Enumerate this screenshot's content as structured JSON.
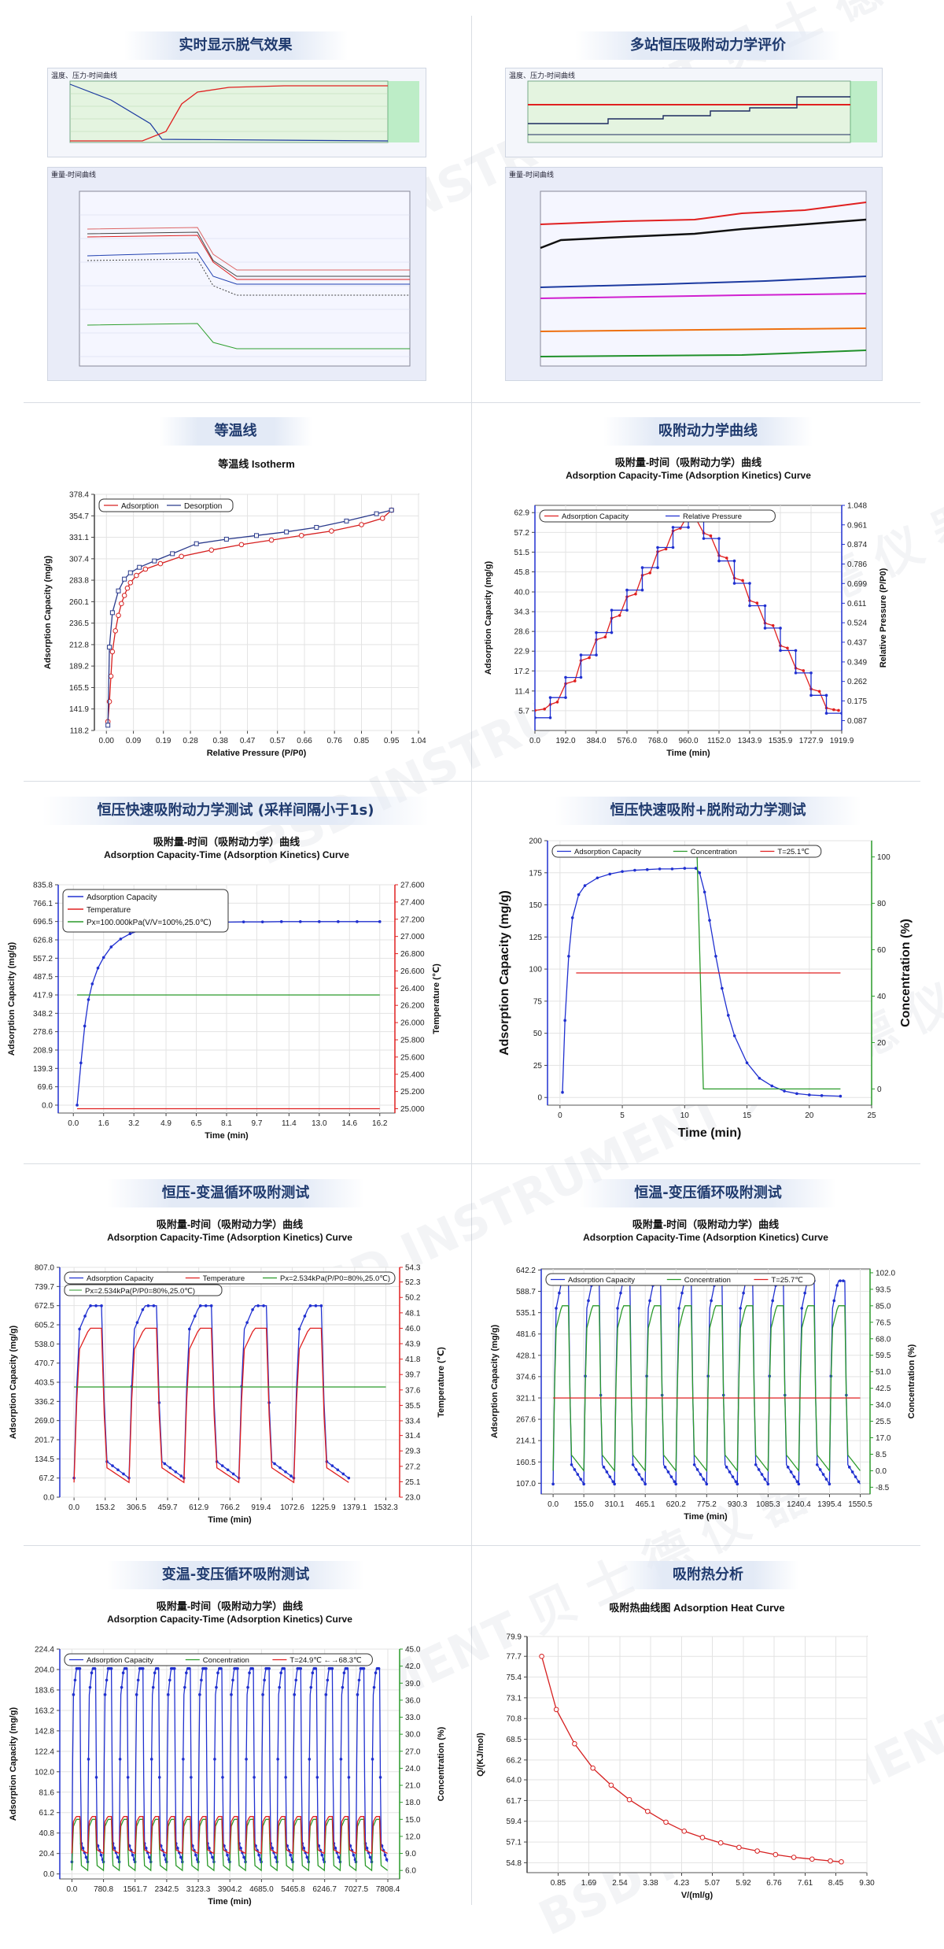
{
  "sections": {
    "s1": "实时显示脱气效果",
    "s2": "多站恒压吸附动力学评价",
    "s3": "等温线",
    "s4": "吸附动力学曲线",
    "s5": "恒压快速吸附动力学测试 (采样间隔小于1s)",
    "s6": "恒压快速吸附+脱附动力学测试",
    "s7": "恒压-变温循环吸附测试",
    "s8": "恒温-变压循环吸附测试",
    "s9": "变温-变压循环吸附测试",
    "s10": "吸附热分析"
  },
  "watermark": "BSD INSTRUMENT 贝 士 德 仪 器",
  "screens": {
    "degas_top_caption": "温度、压力-时间曲线",
    "degas_bottom_caption": "重量-时间曲线",
    "multi_top_caption": "温度、压力-时间曲线",
    "multi_bottom_caption": "重量-时间曲线"
  },
  "chart_data": [
    {
      "id": "isotherm",
      "type": "line",
      "title": "等温线 Isotherm",
      "xlabel": "Relative Pressure (P/P0)",
      "ylabel": "Adsorption Capacity (mg/g)",
      "xlim": [
        -0.04,
        1.04
      ],
      "ylim": [
        118.2,
        378.4
      ],
      "xticks": [
        "0.00",
        "0.09",
        "0.19",
        "0.28",
        "0.38",
        "0.47",
        "0.57",
        "0.66",
        "0.76",
        "0.85",
        "0.95",
        "1.04"
      ],
      "yticks": [
        "118.2",
        "141.9",
        "165.5",
        "189.2",
        "212.8",
        "236.5",
        "260.1",
        "283.8",
        "307.4",
        "331.1",
        "354.7",
        "378.4"
      ],
      "grid": true,
      "legend": "top-left",
      "series": [
        {
          "name": "Adsorption",
          "color": "#d62020",
          "x": [
            0.005,
            0.01,
            0.015,
            0.02,
            0.03,
            0.04,
            0.05,
            0.06,
            0.07,
            0.08,
            0.1,
            0.13,
            0.18,
            0.25,
            0.35,
            0.45,
            0.55,
            0.65,
            0.75,
            0.85,
            0.92,
            0.95
          ],
          "y": [
            128,
            150,
            178,
            205,
            228,
            245,
            258,
            267,
            275,
            281,
            289,
            296,
            302,
            310,
            317,
            323,
            328,
            333,
            338,
            345,
            352,
            361
          ]
        },
        {
          "name": "Desorption",
          "color": "#2a3a8c",
          "x": [
            0.95,
            0.9,
            0.8,
            0.7,
            0.6,
            0.5,
            0.4,
            0.3,
            0.22,
            0.16,
            0.11,
            0.08,
            0.06,
            0.04,
            0.02,
            0.01,
            0.005
          ],
          "y": [
            361,
            357,
            349,
            342,
            337,
            333,
            329,
            324,
            313,
            305,
            298,
            292,
            285,
            272,
            248,
            210,
            124
          ]
        }
      ]
    },
    {
      "id": "kinetics",
      "type": "line",
      "title": "吸附量-时间（吸附动力学）曲线",
      "subtitle": "Adsorption Capacity-Time (Adsorption Kinetics) Curve",
      "xlabel": "Time (min)",
      "ylabel": "Adsorption Capacity (mg/g)",
      "y2label": "Relative Pressure (P/P0)",
      "xlim": [
        0,
        1919.9
      ],
      "ylim": [
        0,
        65
      ],
      "y2lim": [
        0.043,
        1.048
      ],
      "xticks": [
        "0.0",
        "192.0",
        "384.0",
        "576.0",
        "768.0",
        "960.0",
        "1152.0",
        "1343.9",
        "1535.9",
        "1727.9",
        "1919.9"
      ],
      "yticks": [
        "5.7",
        "11.4",
        "17.2",
        "22.9",
        "28.6",
        "34.3",
        "40.0",
        "45.8",
        "51.5",
        "57.2",
        "62.9"
      ],
      "y2ticks": [
        "0.087",
        "0.175",
        "0.262",
        "0.349",
        "0.437",
        "0.524",
        "0.611",
        "0.699",
        "0.786",
        "0.874",
        "0.961",
        "1.048"
      ],
      "grid": true,
      "legend": "top-left",
      "series": [
        {
          "name": "Adsorption  Capacity",
          "color": "#e02020",
          "x": [
            0,
            60,
            96,
            140,
            192,
            250,
            288,
            340,
            384,
            440,
            480,
            530,
            576,
            630,
            672,
            720,
            768,
            820,
            864,
            910,
            960,
            1000,
            1056,
            1100,
            1152,
            1200,
            1248,
            1300,
            1344,
            1390,
            1440,
            1490,
            1536,
            1580,
            1632,
            1680,
            1728,
            1780,
            1824,
            1870,
            1900
          ],
          "y": [
            5.8,
            6.2,
            7.5,
            8.2,
            13.5,
            14.3,
            20.2,
            21.0,
            26.2,
            27.0,
            32.4,
            33.2,
            38.6,
            39.4,
            44.8,
            45.5,
            51.6,
            52.4,
            57.6,
            58.4,
            62.5,
            61.8,
            57.0,
            56.2,
            50.5,
            49.8,
            44.0,
            43.3,
            37.5,
            36.8,
            31.0,
            30.3,
            24.5,
            23.8,
            18.0,
            17.3,
            12.0,
            11.3,
            6.5,
            6.0,
            5.8
          ]
        },
        {
          "name": "Relative Pressure",
          "color": "#2030d0",
          "x": [
            0,
            96,
            96,
            192,
            192,
            288,
            288,
            384,
            384,
            480,
            480,
            576,
            576,
            672,
            672,
            768,
            768,
            864,
            864,
            960,
            960,
            1056,
            1056,
            1152,
            1152,
            1248,
            1248,
            1344,
            1344,
            1440,
            1440,
            1536,
            1536,
            1632,
            1632,
            1728,
            1728,
            1824,
            1824,
            1919.9
          ],
          "y2": [
            0.1,
            0.1,
            0.19,
            0.19,
            0.28,
            0.28,
            0.38,
            0.38,
            0.48,
            0.48,
            0.58,
            0.58,
            0.67,
            0.67,
            0.77,
            0.77,
            0.86,
            0.86,
            0.95,
            0.95,
            0.99,
            0.99,
            0.9,
            0.9,
            0.8,
            0.8,
            0.7,
            0.7,
            0.6,
            0.6,
            0.5,
            0.5,
            0.4,
            0.4,
            0.3,
            0.3,
            0.2,
            0.2,
            0.12,
            0.12
          ]
        }
      ]
    },
    {
      "id": "fast_kinetics",
      "type": "line",
      "title": "吸附量-时间（吸附动力学）曲线",
      "subtitle": "Adsorption Capacity-Time (Adsorption Kinetics) Curve",
      "xlabel": "Time (min)",
      "ylabel": "Adsorption Capacity (mg/g)",
      "y2label": "Temperature (℃)",
      "xlim": [
        -0.8,
        17.0
      ],
      "ylim": [
        -30,
        835.8
      ],
      "y2lim": [
        24.95,
        27.6
      ],
      "xticks": [
        "0.0",
        "1.6",
        "3.2",
        "4.9",
        "6.5",
        "8.1",
        "9.7",
        "11.4",
        "13.0",
        "14.6",
        "16.2"
      ],
      "yticks": [
        "0.0",
        "69.6",
        "139.3",
        "208.9",
        "278.6",
        "348.2",
        "417.9",
        "487.5",
        "557.2",
        "626.8",
        "696.5",
        "766.1",
        "835.8"
      ],
      "y2ticks": [
        "25.000",
        "25.200",
        "25.400",
        "25.600",
        "25.800",
        "26.000",
        "26.200",
        "26.400",
        "26.600",
        "26.800",
        "27.000",
        "27.200",
        "27.400",
        "27.600"
      ],
      "annotation": "Px=100.000kPa(V/V=100%,25.0℃)",
      "grid": true,
      "legend": "top-left",
      "series": [
        {
          "name": "Adsorption Capacity",
          "color": "#2030d0",
          "x": [
            0.2,
            0.4,
            0.6,
            0.8,
            1.0,
            1.3,
            1.6,
            2.0,
            2.5,
            3.0,
            3.6,
            4.2,
            5.0,
            6.0,
            7.0,
            8.0,
            9.0,
            10.0,
            11.0,
            12.0,
            13.0,
            14.0,
            15.0,
            16.2
          ],
          "y": [
            0,
            160,
            300,
            400,
            460,
            520,
            560,
            600,
            630,
            650,
            665,
            676,
            684,
            690,
            693,
            694,
            695,
            695,
            696,
            696,
            696,
            696,
            696,
            696
          ]
        },
        {
          "name": "Temperature",
          "color": "#e02020",
          "x": [
            0.2,
            16.2
          ],
          "y2": [
            25.0,
            25.0
          ]
        },
        {
          "name": "Px=100.000kPa(V/V=100%,25.0℃)",
          "color": "#2a9a2a",
          "x": [
            0.2,
            16.2
          ],
          "y": [
            417.9,
            417.9
          ]
        }
      ]
    },
    {
      "id": "ads_des",
      "type": "line",
      "xlabel": "Time (min)",
      "ylabel": "Adsorption Capacity (mg/g)",
      "y2label": "Concentration (%)",
      "xlim": [
        -1,
        25
      ],
      "ylim": [
        -6,
        200
      ],
      "y2lim": [
        -7,
        107
      ],
      "xticks": [
        "0",
        "5",
        "10",
        "15",
        "20",
        "25"
      ],
      "yticks": [
        "0",
        "25",
        "50",
        "75",
        "100",
        "125",
        "150",
        "175",
        "200"
      ],
      "y2ticks": [
        "0",
        "20",
        "40",
        "60",
        "80",
        "100"
      ],
      "grid": true,
      "legend": "top-left",
      "series": [
        {
          "name": "Adsorption Capacity",
          "color": "#2030d0",
          "x": [
            0.2,
            0.4,
            0.7,
            1.0,
            1.5,
            2.0,
            3.0,
            4.0,
            5.0,
            6.0,
            7.0,
            8.0,
            9.0,
            10.0,
            10.9,
            11.2,
            11.6,
            12.0,
            12.5,
            13.0,
            13.5,
            14.0,
            15.0,
            16.0,
            17.0,
            18.0,
            19.0,
            20.0,
            21.0,
            22.5
          ],
          "y": [
            4,
            60,
            110,
            140,
            158,
            165,
            171,
            174,
            176,
            177,
            177.5,
            178,
            178,
            178.5,
            178.5,
            175,
            160,
            138,
            110,
            85,
            64,
            48,
            27,
            15,
            9,
            5,
            3,
            2,
            1.5,
            1
          ]
        },
        {
          "name": "Concentration",
          "color": "#2a9a2a",
          "x": [
            0.2,
            11.0,
            11.0,
            11.5,
            22.5
          ],
          "y2": [
            100,
            100,
            100,
            0,
            0
          ]
        },
        {
          "name": "T=25.1℃",
          "color": "#e02020",
          "x": [
            1.3,
            22.5
          ],
          "y": [
            97,
            97
          ]
        }
      ]
    },
    {
      "id": "temp_cycle",
      "type": "line",
      "title": "吸附量-时间（吸附动力学）曲线",
      "subtitle": "Adsorption Capacity-Time (Adsorption Kinetics) Curve",
      "xlabel": "Time (min)",
      "ylabel": "Adsorption Capacity (mg/g)",
      "y2label": "Temperature (℃)",
      "xlim": [
        -70,
        1600
      ],
      "ylim": [
        0,
        807.0
      ],
      "y2lim": [
        23.0,
        54.3
      ],
      "xticks": [
        "0.0",
        "153.2",
        "306.5",
        "459.7",
        "612.9",
        "766.2",
        "919.4",
        "1072.6",
        "1225.9",
        "1379.1",
        "1532.3"
      ],
      "yticks": [
        "0.0",
        "67.2",
        "134.5",
        "201.7",
        "269.0",
        "336.2",
        "403.5",
        "470.7",
        "538.0",
        "605.2",
        "672.5",
        "739.7",
        "807.0"
      ],
      "y2ticks": [
        "23.0",
        "25.1",
        "27.2",
        "29.3",
        "31.4",
        "33.4",
        "35.5",
        "37.6",
        "39.7",
        "41.8",
        "43.9",
        "46.0",
        "48.1",
        "50.2",
        "52.3",
        "54.3"
      ],
      "annotation": "Px=2.534kPa(P/P0=80%,25.0℃)",
      "grid": true,
      "legend": "top",
      "series": [
        {
          "name": "Adsorption Capacity",
          "color": "#2030d0",
          "cycles": 5,
          "period": 270,
          "high": 672,
          "low": 67.2
        },
        {
          "name": "Temperature",
          "color": "#e02020",
          "cycles": 5,
          "period": 270,
          "high": 46.0,
          "low": 25.0
        },
        {
          "name": "Px=2.534kPa(P/P0=80%,25.0℃)",
          "color": "#2a9a2a",
          "x": [
            0,
            1532.3
          ],
          "y": [
            387,
            387
          ]
        }
      ]
    },
    {
      "id": "pressure_cycle",
      "type": "line",
      "title": "吸附量-时间（吸附动力学）曲线",
      "subtitle": "Adsorption Capacity-Time (Adsorption Kinetics) Curve",
      "xlabel": "Time (min)",
      "ylabel": "Adsorption Capacity (mg/g)",
      "y2label": "Concentration (%)",
      "xlim": [
        -60,
        1600
      ],
      "ylim": [
        80,
        645
      ],
      "y2lim": [
        -12,
        104
      ],
      "xticks": [
        "0.0",
        "155.0",
        "310.1",
        "465.1",
        "620.2",
        "775.2",
        "930.3",
        "1085.3",
        "1240.4",
        "1395.4",
        "1550.5"
      ],
      "yticks": [
        "107.0",
        "160.5",
        "214.1",
        "267.6",
        "321.1",
        "374.6",
        "428.1",
        "481.6",
        "535.1",
        "588.7",
        "642.2"
      ],
      "y2ticks": [
        "-8.5",
        "0.0",
        "8.5",
        "17.0",
        "25.5",
        "34.0",
        "42.5",
        "51.0",
        "59.5",
        "68.0",
        "76.5",
        "85.0",
        "93.5",
        "102.0"
      ],
      "grid": true,
      "legend": "top",
      "series": [
        {
          "name": "Adsorption Capacity",
          "color": "#2030d0",
          "cycles": 10,
          "period": 155,
          "high": 615,
          "low": 105
        },
        {
          "name": "Concentration",
          "color": "#2a9a2a",
          "cycles": 10,
          "period": 155,
          "high": 85,
          "low": 0
        },
        {
          "name": "T=25.7℃",
          "color": "#e02020",
          "x": [
            0,
            1550.5
          ],
          "y": [
            321,
            321
          ]
        }
      ]
    },
    {
      "id": "tp_cycle",
      "type": "line",
      "title": "吸附量-时间（吸附动力学）曲线",
      "subtitle": "Adsorption Capacity-Time (Adsorption Kinetics) Curve",
      "xlabel": "Time (min)",
      "ylabel": "Adsorption Capacity (mg/g)",
      "y2label": "Concentration (%)",
      "xlim": [
        -300,
        8100
      ],
      "ylim": [
        -5,
        224.4
      ],
      "y2lim": [
        4.5,
        45.0
      ],
      "xticks": [
        "0.0",
        "780.8",
        "1561.7",
        "2342.5",
        "3123.3",
        "3904.2",
        "4685.0",
        "5465.8",
        "6246.7",
        "7027.5",
        "7808.4"
      ],
      "yticks": [
        "0.0",
        "20.4",
        "40.8",
        "61.2",
        "81.6",
        "102.0",
        "122.4",
        "142.8",
        "163.2",
        "183.6",
        "204.0",
        "224.4"
      ],
      "y2ticks": [
        "6.0",
        "9.0",
        "12.0",
        "15.0",
        "18.0",
        "21.0",
        "24.0",
        "27.0",
        "30.0",
        "33.0",
        "36.0",
        "39.0",
        "42.0",
        "45.0"
      ],
      "grid": true,
      "legend": "top",
      "series": [
        {
          "name": "Adsorption Capacity",
          "color": "#2030d0",
          "cycles": 20,
          "period": 390,
          "high": 205,
          "low": 12
        },
        {
          "name": "Concentration",
          "color": "#2a9a2a",
          "cycles": 20,
          "period": 390,
          "high": 15,
          "low": 6
        },
        {
          "name": "T=24.9℃ ←→68.3℃",
          "color": "#e02020",
          "cycles": 20,
          "period": 390,
          "high": 15.5,
          "low": 9
        }
      ]
    },
    {
      "id": "heat",
      "type": "line",
      "title": "吸附热曲线图 Adsorption Heat Curve",
      "xlabel": "V/(ml/g)",
      "ylabel": "Q/(KJ/mol)",
      "xlim": [
        0.0,
        9.3
      ],
      "ylim": [
        53.7,
        79.9
      ],
      "xticks": [
        "0.85",
        "1.69",
        "2.54",
        "3.38",
        "4.23",
        "5.07",
        "5.92",
        "6.76",
        "7.61",
        "8.45",
        "9.30"
      ],
      "yticks": [
        "54.8",
        "57.1",
        "59.4",
        "61.7",
        "64.0",
        "66.2",
        "68.5",
        "70.8",
        "73.1",
        "75.4",
        "77.7",
        "79.9"
      ],
      "grid": true,
      "series": [
        {
          "name": "",
          "color": "#d62020",
          "x": [
            0.4,
            0.8,
            1.3,
            1.8,
            2.3,
            2.8,
            3.3,
            3.8,
            4.3,
            4.8,
            5.3,
            5.8,
            6.3,
            6.8,
            7.3,
            7.8,
            8.3,
            8.6
          ],
          "y": [
            77.7,
            71.8,
            68.0,
            65.3,
            63.4,
            61.8,
            60.5,
            59.3,
            58.3,
            57.6,
            57.0,
            56.5,
            56.1,
            55.7,
            55.4,
            55.2,
            55.0,
            54.9
          ]
        }
      ]
    }
  ]
}
